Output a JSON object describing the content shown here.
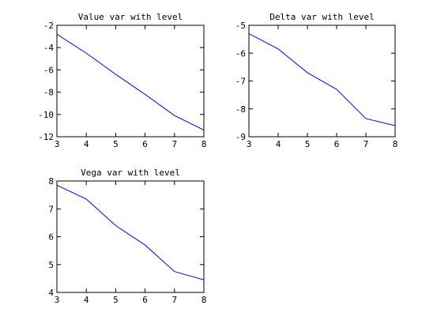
{
  "chart_data": [
    {
      "type": "line",
      "title": "Value var with level",
      "xlabel": "",
      "ylabel": "",
      "xlim": [
        3,
        8
      ],
      "ylim": [
        -12,
        -2
      ],
      "xticks": [
        3,
        4,
        5,
        6,
        7,
        8
      ],
      "yticks": [
        -12,
        -10,
        -8,
        -6,
        -4,
        -2
      ],
      "grid": false,
      "series": [
        {
          "x": [
            3,
            4,
            5,
            6,
            7,
            8
          ],
          "values": [
            -2.8,
            -4.5,
            -6.4,
            -8.2,
            -10.1,
            -11.4
          ],
          "color": "#0000ff"
        }
      ]
    },
    {
      "type": "line",
      "title": "Delta var with level",
      "xlabel": "",
      "ylabel": "",
      "xlim": [
        3,
        8
      ],
      "ylim": [
        -9,
        -5
      ],
      "xticks": [
        3,
        4,
        5,
        6,
        7,
        8
      ],
      "yticks": [
        -9,
        -8,
        -7,
        -6,
        -5
      ],
      "grid": false,
      "series": [
        {
          "x": [
            3,
            4,
            5,
            6,
            7,
            8
          ],
          "values": [
            -5.3,
            -5.85,
            -6.7,
            -7.3,
            -8.35,
            -8.6
          ],
          "color": "#0000ff"
        }
      ]
    },
    {
      "type": "line",
      "title": "Vega var with level",
      "xlabel": "",
      "ylabel": "",
      "xlim": [
        3,
        8
      ],
      "ylim": [
        4,
        8
      ],
      "xticks": [
        3,
        4,
        5,
        6,
        7,
        8
      ],
      "yticks": [
        4,
        5,
        6,
        7,
        8
      ],
      "grid": false,
      "series": [
        {
          "x": [
            3,
            4,
            5,
            6,
            7,
            8
          ],
          "values": [
            7.85,
            7.35,
            6.4,
            5.7,
            4.75,
            4.45
          ],
          "color": "#0000ff"
        }
      ]
    }
  ]
}
